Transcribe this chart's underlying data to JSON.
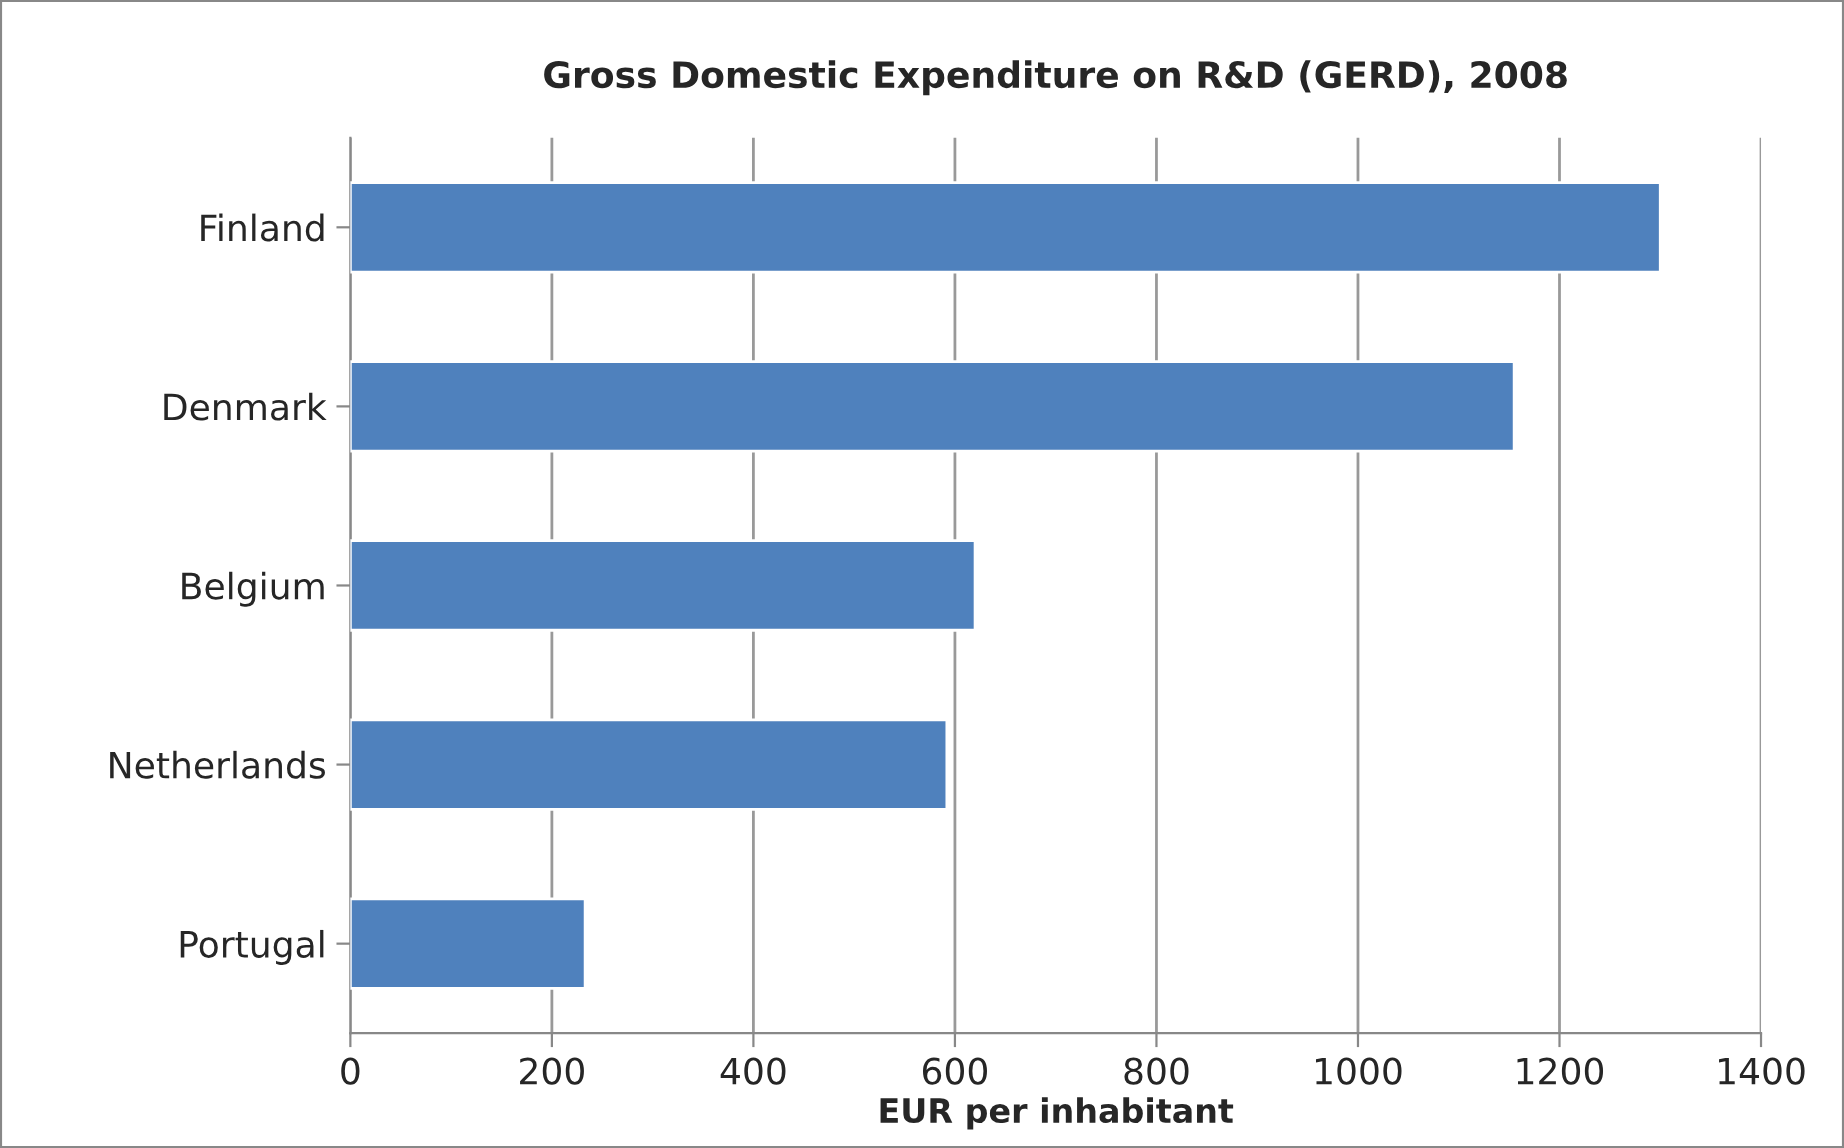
{
  "chart_data": {
    "type": "bar",
    "orientation": "horizontal",
    "title": "Gross Domestic Expenditure on R&D (GERD), 2008",
    "xlabel": "EUR per inhabitant",
    "categories": [
      "Finland",
      "Denmark",
      "Belgium",
      "Netherlands",
      "Portugal"
    ],
    "values": [
      1300,
      1155,
      620,
      592,
      233
    ],
    "color": "#4f81bd",
    "xlim": [
      0,
      1400
    ],
    "xticks": [
      0,
      200,
      400,
      600,
      800,
      1000,
      1200,
      1400
    ],
    "grid": "x",
    "legend": false
  }
}
